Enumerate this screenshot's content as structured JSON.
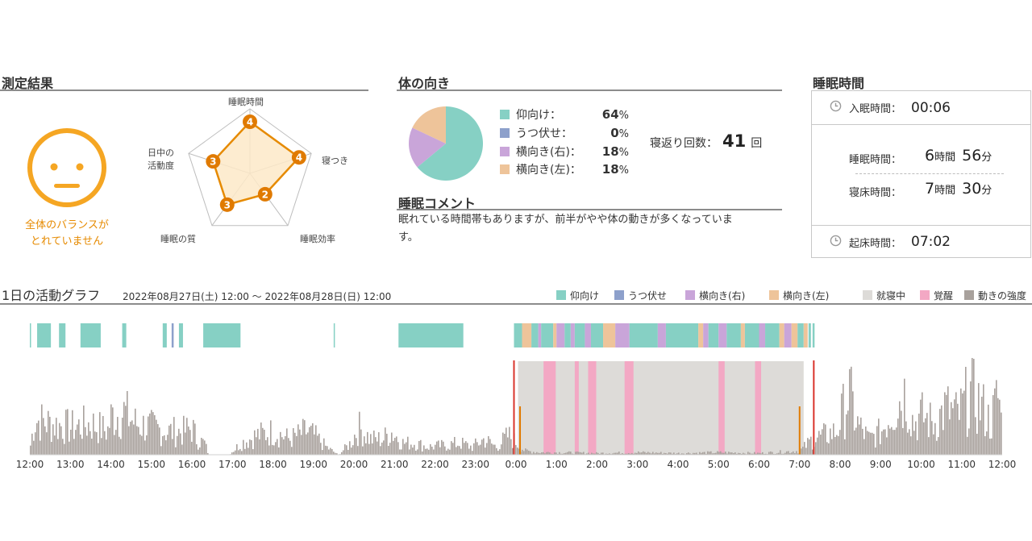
{
  "measurement": {
    "title": "測定結果",
    "face_caption_line1": "全体のバランスが",
    "face_caption_line2": "とれていません",
    "radar": {
      "axes": [
        {
          "label_line1": "睡眠時間",
          "label_line2": "",
          "score": 4
        },
        {
          "label_line1": "寝つき",
          "label_line2": "",
          "score": 4
        },
        {
          "label_line1": "睡眠効率",
          "label_line2": "",
          "score": 2
        },
        {
          "label_line1": "睡眠の質",
          "label_line2": "",
          "score": 3
        },
        {
          "label_line1": "日中の",
          "label_line2": "活動度",
          "score": 3
        }
      ],
      "max": 5,
      "colors": {
        "stroke": "#e68a00",
        "fill": "#fde9c8",
        "grid": "#bdbdbd",
        "point": "#e07a00"
      }
    }
  },
  "posture": {
    "title": "体の向き",
    "items": [
      {
        "label": "仰向け：",
        "percent": "64",
        "unit": "%",
        "color": "#86d0c4"
      },
      {
        "label": "うつ伏せ：",
        "percent": "0",
        "unit": "%",
        "color": "#8da0cb"
      },
      {
        "label": "横向き(右)：",
        "percent": "18",
        "unit": "%",
        "color": "#c9a5d9"
      },
      {
        "label": "横向き(左)：",
        "percent": "18",
        "unit": "%",
        "color": "#eec49a"
      }
    ],
    "turnover_label": "寝返り回数：",
    "turnover_count": "41",
    "turnover_unit": "回"
  },
  "comment": {
    "title": "睡眠コメント",
    "line1": "眠れている時間帯もありますが、前半がやや体の動きが多くなっていま",
    "line2": "す。"
  },
  "sleep_time": {
    "title": "睡眠時間",
    "fall_asleep_label": "入眠時間：",
    "fall_asleep_value": "00:06",
    "sleep_label": "睡眠時間：",
    "sleep_hours": "6",
    "sleep_hours_unit": "時間",
    "sleep_minutes": "56",
    "sleep_minutes_unit": "分",
    "inbed_label": "寝床時間：",
    "inbed_hours": "7",
    "inbed_hours_unit": "時間",
    "inbed_minutes": "30",
    "inbed_minutes_unit": "分",
    "wake_label": "起床時間：",
    "wake_value": "07:02"
  },
  "activity": {
    "title": "1日の活動グラフ",
    "date_range": "2022年08月27日(土) 12:00 〜 2022年08月28日(日) 12:00",
    "legend": [
      {
        "label": "仰向け",
        "color": "#86d0c4"
      },
      {
        "label": "うつ伏せ",
        "color": "#8da0cb"
      },
      {
        "label": "横向き(右)",
        "color": "#c9a5d9"
      },
      {
        "label": "横向き(左)",
        "color": "#eec49a"
      },
      {
        "label": "就寝中",
        "color": "#dddbd8"
      },
      {
        "label": "覚醒",
        "color": "#f3a8c4"
      },
      {
        "label": "動きの強度",
        "color": "#a8a19c"
      }
    ]
  },
  "chart_data": {
    "type": "bar",
    "x_unit": "hours since 2022-08-27 12:00",
    "xlim": [
      0,
      24
    ],
    "tick_labels": [
      "12:00",
      "13:00",
      "14:00",
      "15:00",
      "16:00",
      "17:00",
      "18:00",
      "19:00",
      "20:00",
      "21:00",
      "22:00",
      "23:00",
      "0:00",
      "1:00",
      "2:00",
      "3:00",
      "4:00",
      "5:00",
      "6:00",
      "7:00",
      "8:00",
      "9:00",
      "10:00",
      "11:00",
      "12:00"
    ],
    "in_bed": [
      12.05,
      19.1
    ],
    "bedtime_markers": [
      11.95,
      19.35
    ],
    "sleep_onset_markers": [
      12.1,
      19.0
    ],
    "awake_segments": [
      [
        12.68,
        12.98
      ],
      [
        13.45,
        13.55
      ],
      [
        13.78,
        13.98
      ],
      [
        14.68,
        14.9
      ],
      [
        17.0,
        17.15
      ],
      [
        17.9,
        18.05
      ]
    ],
    "posture_segments": [
      {
        "start": 0.0,
        "end": 0.03,
        "posture": "仰向け"
      },
      {
        "start": 0.18,
        "end": 0.52,
        "posture": "仰向け"
      },
      {
        "start": 0.72,
        "end": 0.88,
        "posture": "仰向け"
      },
      {
        "start": 1.25,
        "end": 1.75,
        "posture": "仰向け"
      },
      {
        "start": 2.28,
        "end": 2.38,
        "posture": "仰向け"
      },
      {
        "start": 3.28,
        "end": 3.38,
        "posture": "仰向け"
      },
      {
        "start": 3.5,
        "end": 3.55,
        "posture": "うつ伏せ"
      },
      {
        "start": 3.68,
        "end": 3.78,
        "posture": "仰向け"
      },
      {
        "start": 4.28,
        "end": 5.2,
        "posture": "仰向け"
      },
      {
        "start": 7.5,
        "end": 7.53,
        "posture": "仰向け"
      },
      {
        "start": 9.1,
        "end": 10.7,
        "posture": "仰向け"
      },
      {
        "start": 11.95,
        "end": 12.15,
        "posture": "仰向け"
      },
      {
        "start": 12.15,
        "end": 12.38,
        "posture": "横向き(左)"
      },
      {
        "start": 12.38,
        "end": 12.55,
        "posture": "仰向け"
      },
      {
        "start": 12.55,
        "end": 12.62,
        "posture": "横向き(右)"
      },
      {
        "start": 12.62,
        "end": 12.92,
        "posture": "仰向け"
      },
      {
        "start": 12.92,
        "end": 13.0,
        "posture": "横向き(左)"
      },
      {
        "start": 13.0,
        "end": 13.2,
        "posture": "横向き(右)"
      },
      {
        "start": 13.2,
        "end": 13.35,
        "posture": "仰向け"
      },
      {
        "start": 13.35,
        "end": 13.45,
        "posture": "横向き(右)"
      },
      {
        "start": 13.45,
        "end": 13.7,
        "posture": "仰向け"
      },
      {
        "start": 13.7,
        "end": 13.85,
        "posture": "横向き(右)"
      },
      {
        "start": 13.85,
        "end": 14.15,
        "posture": "仰向け"
      },
      {
        "start": 14.15,
        "end": 14.45,
        "posture": "横向き(左)"
      },
      {
        "start": 14.45,
        "end": 14.8,
        "posture": "横向き(右)"
      },
      {
        "start": 14.8,
        "end": 15.5,
        "posture": "仰向け"
      },
      {
        "start": 15.5,
        "end": 15.7,
        "posture": "横向き(右)"
      },
      {
        "start": 15.7,
        "end": 16.5,
        "posture": "仰向け"
      },
      {
        "start": 16.5,
        "end": 16.62,
        "posture": "横向き(左)"
      },
      {
        "start": 16.62,
        "end": 16.75,
        "posture": "横向き(右)"
      },
      {
        "start": 16.75,
        "end": 17.0,
        "posture": "仰向け"
      },
      {
        "start": 17.0,
        "end": 17.2,
        "posture": "横向き(右)"
      },
      {
        "start": 17.2,
        "end": 17.55,
        "posture": "仰向け"
      },
      {
        "start": 17.55,
        "end": 17.65,
        "posture": "横向き(左)"
      },
      {
        "start": 17.65,
        "end": 18.0,
        "posture": "仰向け"
      },
      {
        "start": 18.0,
        "end": 18.15,
        "posture": "横向き(右)"
      },
      {
        "start": 18.15,
        "end": 18.5,
        "posture": "仰向け"
      },
      {
        "start": 18.5,
        "end": 18.62,
        "posture": "横向き(左)"
      },
      {
        "start": 18.62,
        "end": 18.8,
        "posture": "横向き(右)"
      },
      {
        "start": 18.8,
        "end": 18.95,
        "posture": "横向き(左)"
      },
      {
        "start": 18.95,
        "end": 19.1,
        "posture": "仰向け"
      },
      {
        "start": 19.1,
        "end": 19.2,
        "posture": "横向き(左)"
      },
      {
        "start": 19.22,
        "end": 19.28,
        "posture": "仰向け"
      },
      {
        "start": 19.32,
        "end": 19.37,
        "posture": "仰向け"
      }
    ],
    "movement_intensity_max": 100,
    "movement_envelope": [
      [
        0.0,
        12
      ],
      [
        0.1,
        45
      ],
      [
        0.5,
        40
      ],
      [
        1.0,
        35
      ],
      [
        1.5,
        40
      ],
      [
        1.9,
        30
      ],
      [
        2.0,
        50
      ],
      [
        2.3,
        55
      ],
      [
        2.6,
        40
      ],
      [
        3.0,
        35
      ],
      [
        3.4,
        30
      ],
      [
        3.8,
        30
      ],
      [
        4.0,
        35
      ],
      [
        4.1,
        20
      ],
      [
        4.3,
        15
      ],
      [
        4.4,
        0
      ],
      [
        4.9,
        0
      ],
      [
        5.2,
        15
      ],
      [
        5.6,
        25
      ],
      [
        6.0,
        30
      ],
      [
        6.4,
        20
      ],
      [
        6.8,
        30
      ],
      [
        7.0,
        25
      ],
      [
        7.3,
        10
      ],
      [
        7.6,
        0
      ],
      [
        7.9,
        15
      ],
      [
        8.1,
        35
      ],
      [
        8.4,
        20
      ],
      [
        8.7,
        20
      ],
      [
        8.9,
        30
      ],
      [
        9.2,
        15
      ],
      [
        9.5,
        15
      ],
      [
        9.8,
        10
      ],
      [
        10.2,
        12
      ],
      [
        10.6,
        15
      ],
      [
        10.9,
        10
      ],
      [
        11.2,
        20
      ],
      [
        11.5,
        10
      ],
      [
        11.8,
        25
      ],
      [
        12.0,
        15
      ],
      [
        12.2,
        5
      ],
      [
        12.6,
        3
      ],
      [
        13.0,
        3
      ],
      [
        14.0,
        2
      ],
      [
        15.0,
        3
      ],
      [
        16.0,
        2
      ],
      [
        17.0,
        3
      ],
      [
        18.0,
        2
      ],
      [
        19.0,
        5
      ],
      [
        19.3,
        20
      ],
      [
        19.6,
        25
      ],
      [
        19.9,
        30
      ],
      [
        20.2,
        80
      ],
      [
        20.4,
        40
      ],
      [
        20.7,
        20
      ],
      [
        21.0,
        30
      ],
      [
        21.3,
        60
      ],
      [
        21.6,
        80
      ],
      [
        21.8,
        40
      ],
      [
        22.0,
        50
      ],
      [
        22.3,
        40
      ],
      [
        22.6,
        60
      ],
      [
        22.9,
        50
      ],
      [
        23.2,
        80
      ],
      [
        23.5,
        60
      ],
      [
        23.7,
        40
      ],
      [
        23.9,
        80
      ],
      [
        24.0,
        20
      ]
    ]
  }
}
